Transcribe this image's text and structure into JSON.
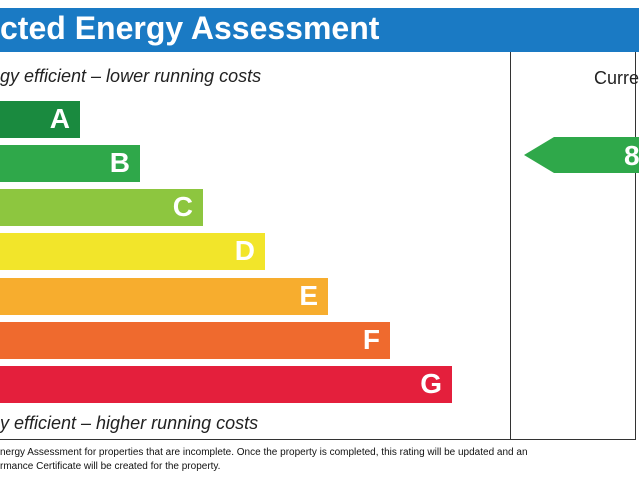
{
  "header": {
    "title": "cted Energy Assessment"
  },
  "left": {
    "top_label": "gy efficient – lower running costs",
    "bands": [
      {
        "letter": "A"
      },
      {
        "letter": "B"
      },
      {
        "letter": "C"
      },
      {
        "letter": "D"
      },
      {
        "letter": "E"
      },
      {
        "letter": "F"
      },
      {
        "letter": "G"
      }
    ],
    "bottom_label": "y efficient – higher running costs"
  },
  "right": {
    "heading": "Curre",
    "current_rating": "8"
  },
  "footer": {
    "lines": [
      "nergy Assessment for properties that are incomplete. Once the property is completed, this rating will be updated and an",
      "rmance Certificate will be created for the property."
    ]
  }
}
